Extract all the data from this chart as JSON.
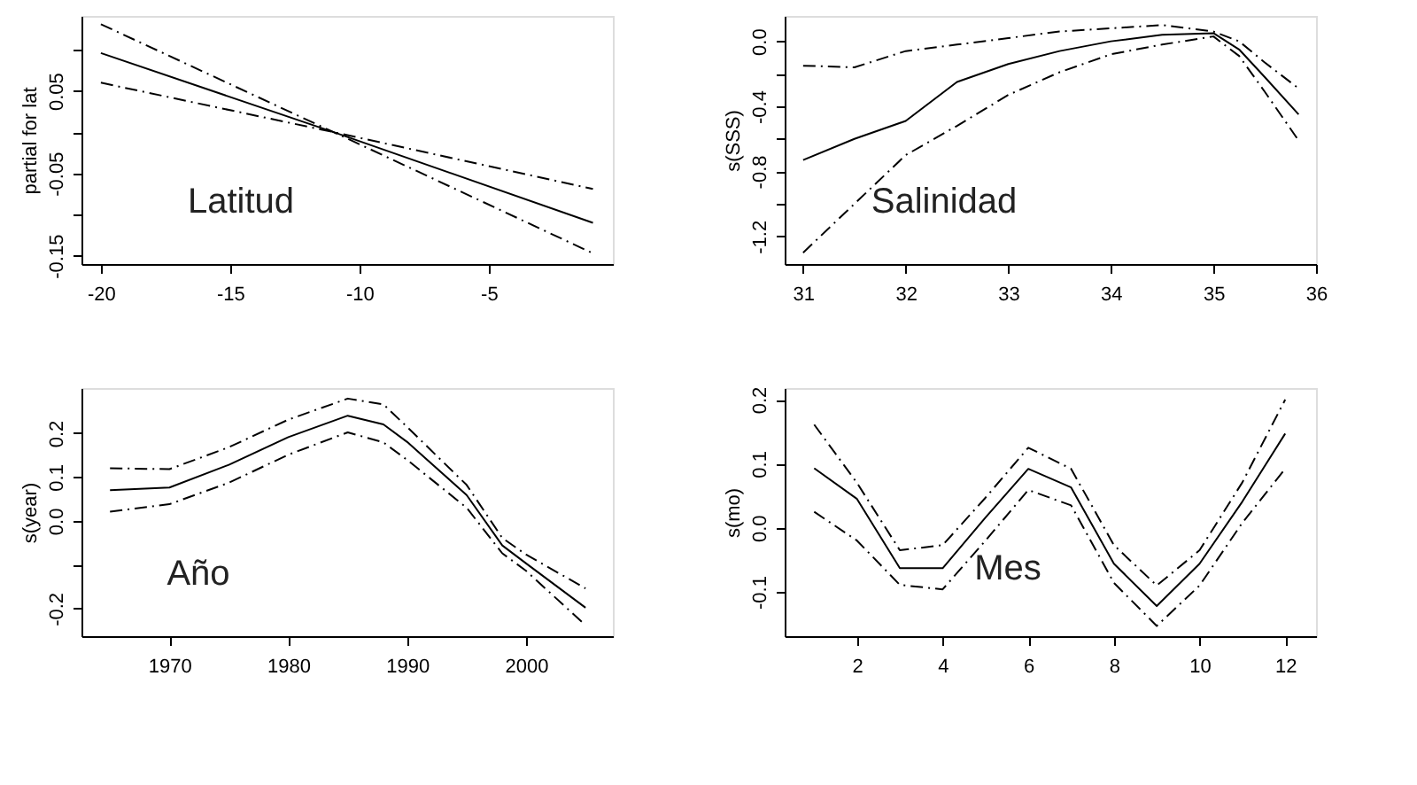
{
  "chart_data": [
    {
      "type": "line",
      "ylabel": "partial for lat",
      "annotations": [
        "Latitud"
      ],
      "x": [
        -20,
        -11,
        -0.97
      ],
      "xlim": [
        -20.75,
        -0.2
      ],
      "xticks": [
        -20,
        -15,
        -10,
        -5
      ],
      "ylim": [
        -0.16,
        0.141
      ],
      "yticks": [
        {
          "value": 0.1,
          "label": null
        },
        0.05,
        {
          "value": 0,
          "label": null
        },
        -0.05,
        {
          "value": -0.1,
          "label": null
        },
        -0.15
      ],
      "grid": false,
      "series": [
        {
          "color": "#000000",
          "line_style": "solid",
          "values": [
            0.096,
            0,
            -0.11
          ]
        },
        {
          "color": "#000000",
          "line_style": "dashed",
          "values": [
            0.131,
            0,
            -0.147
          ]
        },
        {
          "color": "#000000",
          "line_style": "dashed",
          "values": [
            0.06,
            0,
            -0.069
          ]
        }
      ]
    },
    {
      "type": "line",
      "ylabel": "s(SSS)",
      "annotations": [
        "Salinidad"
      ],
      "x": [
        31,
        31.5,
        32,
        32.5,
        33,
        33.5,
        34,
        34.5,
        35,
        35.25,
        35.5,
        35.83
      ],
      "xlim": [
        30.82,
        36.0
      ],
      "xticks": [
        31,
        32,
        33,
        34,
        35,
        36
      ],
      "ylim": [
        -1.37,
        0.156
      ],
      "yticks": [
        {
          "value": 0,
          "label": "0.0"
        },
        {
          "value": -0.2,
          "label": null
        },
        -0.4,
        {
          "value": -0.6,
          "label": null
        },
        -0.8,
        {
          "value": -1.0,
          "label": null
        },
        -1.2
      ],
      "grid": false,
      "series": [
        {
          "color": "#000000",
          "line_style": "solid",
          "values": [
            -0.73,
            -0.6,
            -0.49,
            -0.25,
            -0.14,
            -0.06,
            0.0,
            0.04,
            0.05,
            -0.05,
            -0.22,
            -0.45
          ]
        },
        {
          "color": "#000000",
          "line_style": "dashed",
          "values": [
            -0.15,
            -0.16,
            -0.06,
            -0.02,
            0.02,
            0.06,
            0.08,
            0.1,
            0.06,
            0.0,
            -0.13,
            -0.29
          ]
        },
        {
          "color": "#000000",
          "line_style": "dashed",
          "values": [
            -1.3,
            -1.0,
            -0.7,
            -0.52,
            -0.33,
            -0.19,
            -0.08,
            -0.02,
            0.03,
            -0.09,
            -0.31,
            -0.61
          ]
        }
      ]
    },
    {
      "type": "line",
      "ylabel": "s(year)",
      "annotations": [
        "Año"
      ],
      "x": [
        1965,
        1970,
        1975,
        1980,
        1985,
        1988,
        1990,
        1995,
        1998,
        2000,
        2005
      ],
      "xlim": [
        1962.6,
        2007.3
      ],
      "xticks": [
        1970,
        1980,
        1990,
        2000
      ],
      "ylim": [
        -0.263,
        0.303
      ],
      "yticks": [
        0.2,
        0.1,
        {
          "value": 0,
          "label": "0.0"
        },
        {
          "value": -0.1,
          "label": null
        },
        -0.2
      ],
      "grid": false,
      "series": [
        {
          "color": "#000000",
          "line_style": "solid",
          "values": [
            0.07,
            0.076,
            0.128,
            0.191,
            0.24,
            0.22,
            0.18,
            0.059,
            -0.056,
            -0.097,
            -0.198
          ]
        },
        {
          "color": "#000000",
          "line_style": "dashed",
          "values": [
            0.12,
            0.118,
            0.168,
            0.231,
            0.279,
            0.266,
            0.214,
            0.082,
            -0.039,
            -0.077,
            -0.154
          ]
        },
        {
          "color": "#000000",
          "line_style": "dashed",
          "values": [
            0.021,
            0.038,
            0.087,
            0.151,
            0.202,
            0.179,
            0.139,
            0.03,
            -0.074,
            -0.114,
            -0.238
          ]
        }
      ]
    },
    {
      "type": "line",
      "ylabel": "s(mo)",
      "annotations": [
        "Mes"
      ],
      "x": [
        1,
        2,
        3,
        4,
        5,
        6,
        7,
        8,
        9,
        10,
        11,
        12
      ],
      "xlim": [
        0.31,
        12.72
      ],
      "xticks": [
        2,
        4,
        6,
        8,
        10,
        12
      ],
      "ylim": [
        -0.169,
        0.218
      ],
      "yticks": [
        0.2,
        0.1,
        {
          "value": 0,
          "label": "0.0"
        },
        -0.1
      ],
      "grid": false,
      "series": [
        {
          "color": "#000000",
          "line_style": "solid",
          "values": [
            0.093,
            0.045,
            -0.063,
            -0.063,
            0.016,
            0.092,
            0.063,
            -0.056,
            -0.122,
            -0.056,
            0.041,
            0.147
          ]
        },
        {
          "color": "#000000",
          "line_style": "dashed",
          "values": [
            0.161,
            0.07,
            -0.035,
            -0.027,
            0.047,
            0.125,
            0.092,
            -0.027,
            -0.09,
            -0.035,
            0.071,
            0.2
          ]
        },
        {
          "color": "#000000",
          "line_style": "dashed",
          "values": [
            0.025,
            -0.02,
            -0.089,
            -0.096,
            -0.02,
            0.059,
            0.035,
            -0.086,
            -0.153,
            -0.09,
            0.008,
            0.092
          ]
        }
      ]
    }
  ]
}
